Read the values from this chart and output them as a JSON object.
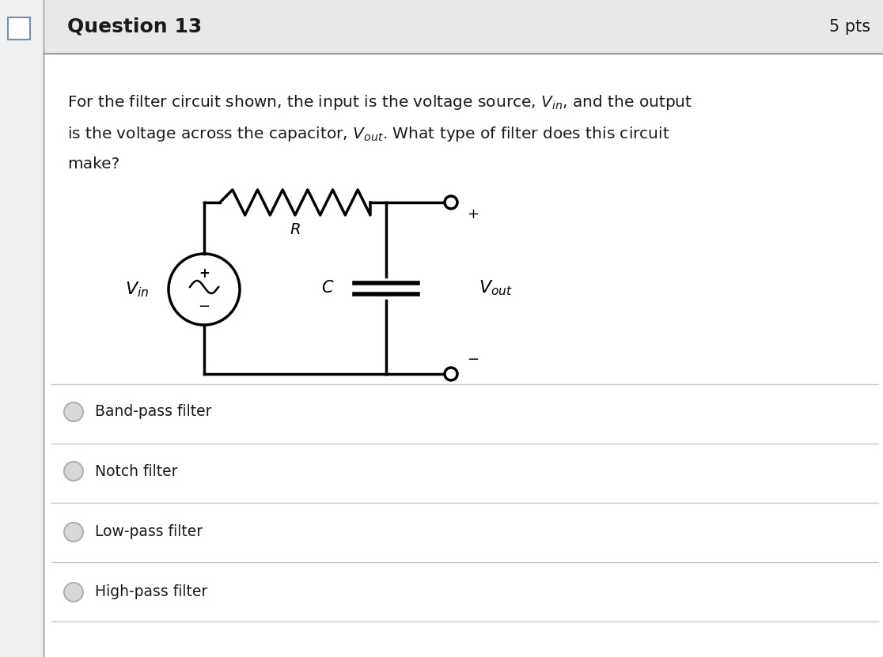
{
  "title": "Question 13",
  "pts": "5 pts",
  "options": [
    "Band-pass filter",
    "Notch filter",
    "Low-pass filter",
    "High-pass filter"
  ],
  "bg_color": "#f0f0f0",
  "panel_color": "#ffffff",
  "header_color": "#e8e8e8",
  "text_color": "#1a1a1a",
  "line_color": "#000000",
  "option_circle_color": "#b0b0b0",
  "divider_color": "#c8c8c8",
  "header_sep_color": "#a0a0a0",
  "left_border_color": "#c0c0c0"
}
